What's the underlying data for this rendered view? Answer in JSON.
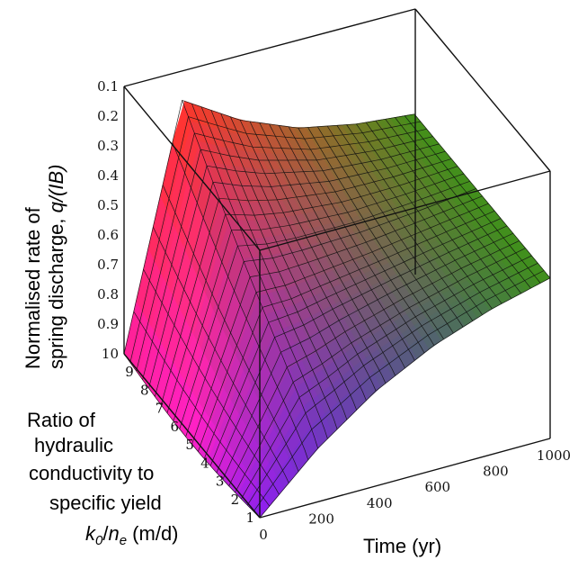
{
  "chart_data": {
    "type": "surface",
    "z_label_line1": "Normalised rate of",
    "z_label_line2_prefix": "spring discharge, ",
    "z_label_line2_var": "q/(IB)",
    "k_label_lines": [
      "Ratio of",
      "hydraulic",
      "conductivity to",
      "specific yield"
    ],
    "k_label_symbol_k": "k",
    "k_label_symbol_sub0": "0",
    "k_label_symbol_slash": "/",
    "k_label_symbol_n": "n",
    "k_label_symbol_sube": "e",
    "k_label_units": " (m/d)",
    "time_label": "Time (yr)",
    "z_ticks": [
      "0.1",
      "0.2",
      "0.3",
      "0.4",
      "0.5",
      "0.6",
      "0.7",
      "0.8",
      "0.9"
    ],
    "k_ticks": [
      "10",
      "9",
      "8",
      "7",
      "6",
      "5",
      "4",
      "3",
      "2",
      "1"
    ],
    "t_ticks": [
      "0",
      "200",
      "400",
      "600",
      "800",
      "1000"
    ],
    "t_range": [
      0,
      1000
    ],
    "k_range": [
      1,
      10
    ],
    "z_range": [
      0.1,
      1.0
    ],
    "z_axis_inverted": true,
    "surface_samples": {
      "t": [
        0,
        200,
        400,
        600,
        800,
        1000
      ],
      "k_equals_1": [
        1.0,
        0.82,
        0.68,
        0.58,
        0.51,
        0.46
      ],
      "k_equals_10": [
        1.0,
        0.2,
        0.32,
        0.4,
        0.44,
        0.46
      ]
    },
    "colormap": "red-green-blue-magenta",
    "grid": false
  }
}
